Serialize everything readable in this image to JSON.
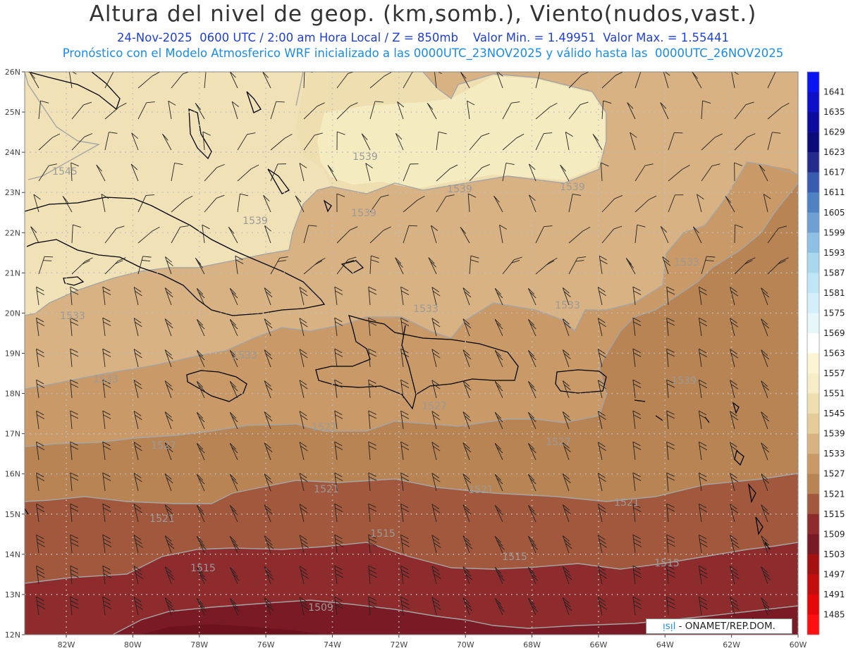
{
  "header": {
    "title": "Altura del nivel de geop. (km,somb.), Viento(nudos,vast.)",
    "subtitle_1": "24-Nov-2025  0600 UTC / 2:00 am Hora Local / Z = 850mb    Valor Min. = 1.49951  Valor Max. = 1.55441",
    "subtitle_2": "Pronóstico con el Modelo Atmosferico WRF inicializado a las 0000UTC_23NOV2025 y válido hasta las  0000UTC_26NOV2025"
  },
  "map": {
    "lat_ticks": [
      "26N",
      "25N",
      "24N",
      "23N",
      "22N",
      "21N",
      "20N",
      "19N",
      "18N",
      "17N",
      "16N",
      "15N",
      "14N",
      "13N",
      "12N"
    ],
    "lon_ticks": [
      "82W",
      "80W",
      "78W",
      "76W",
      "74W",
      "72W",
      "70W",
      "68W",
      "66W",
      "64W",
      "62W",
      "60W"
    ],
    "contour_labels": [
      "1545",
      "1539",
      "1539",
      "1539",
      "1539",
      "1539",
      "1533",
      "1533",
      "1533",
      "1533",
      "1533",
      "1533",
      "1527",
      "1527",
      "1527",
      "1527",
      "1521",
      "1521",
      "1521",
      "1521",
      "1515",
      "1515",
      "1515",
      "1515",
      "1509",
      "1539",
      "1527",
      "1533"
    ]
  },
  "colorbar": {
    "levels": [
      "1641",
      "1635",
      "1629",
      "1623",
      "1617",
      "1611",
      "1605",
      "1599",
      "1593",
      "1587",
      "1581",
      "1575",
      "1569",
      "1563",
      "1557",
      "1551",
      "1545",
      "1539",
      "1533",
      "1527",
      "1521",
      "1515",
      "1509",
      "1503",
      "1497",
      "1491",
      "1485"
    ],
    "colors": [
      "#0a14f0",
      "#0d10c8",
      "#0b0c9e",
      "#0d0a7a",
      "#232c8c",
      "#3a5cb0",
      "#4f82c2",
      "#6d9fd2",
      "#8ec0e4",
      "#a9d8ee",
      "#bfe6f4",
      "#d3eff9",
      "#e6f7fc",
      "#ffffff",
      "#fbf5d4",
      "#f6edc6",
      "#efdfb0",
      "#e6cc98",
      "#d8b282",
      "#c99a68",
      "#b88454",
      "#a2583c",
      "#8d2b2d",
      "#7a1a24",
      "#a31111",
      "#c20e0e",
      "#e40808",
      "#ff1010"
    ]
  },
  "credit": {
    "highlight": "ᴉsᴉl",
    "text": " - ONAMET/REP.DOM."
  }
}
